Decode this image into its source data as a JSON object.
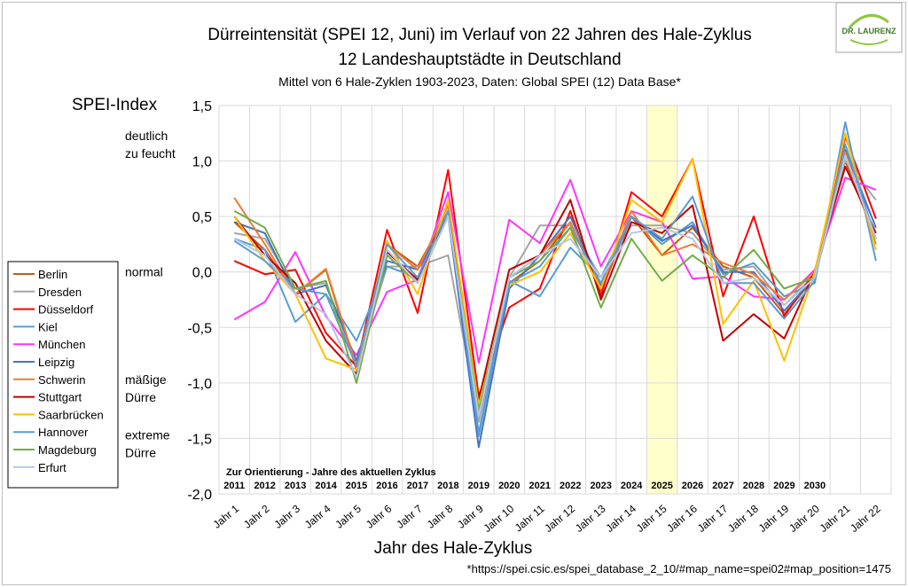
{
  "chart_data": {
    "type": "line",
    "title": "Dürreintensität (SPEI 12, Juni) im Verlauf von 22 Jahren des Hale-Zyklus",
    "subtitle": "12 Landeshauptstädte  in Deutschland",
    "subtitle2": "Mittel von 6 Hale-Zyklen 1903-2023, Daten: Global SPEI (12) Data Base*",
    "ylabel": "SPEI-Index",
    "xlabel": "Jahr des Hale-Zyklus",
    "ylim": [
      -2.0,
      1.5
    ],
    "yticks": [
      "1,5",
      "1,0",
      "0,5",
      "0,0",
      "-0,5",
      "-1,0",
      "-1,5",
      "-2,0"
    ],
    "grid": true,
    "legend_position": "left",
    "categories": [
      "Jahr 1",
      "Jahr 2",
      "Jahr 3",
      "Jahr 4",
      "Jahr 5",
      "Jahr 6",
      "Jahr 7",
      "Jahr 8",
      "Jahr 9",
      "Jahr 10",
      "Jahr 11",
      "Jahr 12",
      "Jahr 13",
      "Jahr 14",
      "Jahr 15",
      "Jahr 16",
      "Jahr 17",
      "Jahr 18",
      "Jahr 19",
      "Jahr 20",
      "Jahr 21",
      "Jahr 22"
    ],
    "orientation_label": "Zur Orientierung - Jahre des aktuellen Zyklus",
    "orientation_years": [
      "2011",
      "2012",
      "2013",
      "2014",
      "2015",
      "2016",
      "2017",
      "2018",
      "2019",
      "2020",
      "2021",
      "2022",
      "2023",
      "2024",
      "2025",
      "2026",
      "2027",
      "2028",
      "2029",
      "2030"
    ],
    "highlight_category": "Jahr 15",
    "highlight_color": "#ffffcc",
    "y_annotations": [
      {
        "lines": [
          "deutlich",
          "zu feucht"
        ],
        "at": 1.15
      },
      {
        "lines": [
          "normal"
        ],
        "at": 0.0
      },
      {
        "lines": [
          "mäßige",
          "Dürre"
        ],
        "at": -1.05
      },
      {
        "lines": [
          "extreme",
          "Dürre"
        ],
        "at": -1.55
      }
    ],
    "series": [
      {
        "name": "Berlin",
        "color": "#c55a11",
        "values": [
          0.45,
          0.2,
          -0.2,
          0.02,
          -0.88,
          0.25,
          0.05,
          0.55,
          -1.25,
          -0.1,
          0.1,
          0.45,
          -0.18,
          0.5,
          0.15,
          0.4,
          0.05,
          -0.05,
          -0.38,
          -0.05,
          1.0,
          0.3
        ]
      },
      {
        "name": "Dresden",
        "color": "#a5a5a5",
        "values": [
          0.35,
          0.3,
          -0.15,
          -0.1,
          -0.85,
          0.05,
          0.05,
          0.15,
          -1.35,
          -0.05,
          0.42,
          0.42,
          -0.05,
          0.42,
          0.42,
          0.35,
          0.02,
          0.05,
          -0.3,
          -0.02,
          1.0,
          0.65
        ]
      },
      {
        "name": "Düsseldorf",
        "color": "#ff0000",
        "values": [
          0.1,
          -0.02,
          0.02,
          -0.55,
          -0.85,
          0.38,
          -0.37,
          0.92,
          -1.12,
          -0.32,
          -0.15,
          0.55,
          -0.22,
          0.72,
          0.5,
          1.02,
          -0.22,
          0.5,
          -0.4,
          0.0,
          1.22,
          0.48
        ]
      },
      {
        "name": "Kiel",
        "color": "#5b9bd5",
        "values": [
          0.3,
          0.2,
          -0.45,
          -0.2,
          -0.62,
          0.05,
          -0.05,
          0.5,
          -1.45,
          -0.08,
          -0.22,
          0.22,
          -0.05,
          0.5,
          0.25,
          0.45,
          -0.02,
          0.08,
          -0.22,
          -0.1,
          1.35,
          0.1
        ]
      },
      {
        "name": "München",
        "color": "#ff33ff",
        "values": [
          -0.43,
          -0.27,
          0.18,
          -0.4,
          -0.75,
          -0.18,
          -0.07,
          0.72,
          -0.82,
          0.47,
          0.26,
          0.83,
          0.05,
          0.55,
          0.45,
          -0.06,
          -0.04,
          -0.22,
          -0.25,
          0.02,
          0.85,
          0.74
        ]
      },
      {
        "name": "Leipzig",
        "color": "#4472c4",
        "values": [
          0.45,
          0.35,
          -0.2,
          -0.12,
          -0.8,
          0.1,
          0.02,
          0.5,
          -1.58,
          -0.15,
          0.15,
          0.5,
          -0.12,
          0.5,
          0.28,
          0.42,
          0.0,
          0.0,
          -0.35,
          -0.05,
          1.1,
          0.4
        ]
      },
      {
        "name": "Schwerin",
        "color": "#ed7d31",
        "values": [
          0.67,
          0.25,
          -0.2,
          0.03,
          -0.85,
          0.25,
          0.02,
          0.6,
          -1.3,
          -0.05,
          0.15,
          0.45,
          -0.15,
          0.55,
          0.15,
          0.25,
          0.08,
          -0.02,
          -0.25,
          0.0,
          1.08,
          0.25
        ]
      },
      {
        "name": "Stuttgart",
        "color": "#c00000",
        "values": [
          0.5,
          0.15,
          -0.1,
          -0.62,
          -0.92,
          0.18,
          -0.07,
          0.55,
          -1.15,
          0.02,
          0.15,
          0.65,
          -0.25,
          0.45,
          0.35,
          0.6,
          -0.62,
          -0.38,
          -0.6,
          0.0,
          0.95,
          0.35
        ]
      },
      {
        "name": "Saarbrücken",
        "color": "#ffc000",
        "values": [
          0.5,
          0.1,
          -0.2,
          -0.78,
          -0.88,
          0.28,
          -0.2,
          0.65,
          -1.2,
          -0.12,
          0.0,
          0.35,
          -0.15,
          0.65,
          0.45,
          1.02,
          -0.47,
          -0.08,
          -0.8,
          0.0,
          1.25,
          0.2
        ]
      },
      {
        "name": "Hannover",
        "color": "#5b9bd5",
        "values": [
          0.28,
          0.1,
          -0.15,
          -0.2,
          -0.85,
          0.25,
          -0.05,
          0.55,
          -1.48,
          -0.1,
          0.05,
          0.4,
          -0.1,
          0.5,
          0.3,
          0.68,
          -0.1,
          -0.1,
          -0.42,
          -0.08,
          1.15,
          0.3
        ]
      },
      {
        "name": "Magdeburg",
        "color": "#70ad47",
        "values": [
          0.55,
          0.4,
          -0.15,
          -0.08,
          -1.0,
          0.15,
          -0.1,
          0.5,
          -1.25,
          -0.05,
          0.1,
          0.4,
          -0.32,
          0.3,
          -0.08,
          0.15,
          -0.05,
          0.2,
          -0.15,
          -0.05,
          1.05,
          0.3
        ]
      },
      {
        "name": "Erfurt",
        "color": "#b4c7e7",
        "values": [
          0.3,
          0.15,
          -0.2,
          -0.38,
          -0.95,
          0.2,
          -0.1,
          0.5,
          -1.3,
          -0.05,
          0.15,
          0.3,
          -0.05,
          0.35,
          0.4,
          0.3,
          -0.1,
          -0.05,
          -0.3,
          -0.05,
          1.05,
          0.3
        ]
      }
    ]
  },
  "footnote": "*https://spei.csic.es/spei_database_2_10/#map_name=spei02#map_position=1475",
  "logo_text": "DR. LAURENZ"
}
